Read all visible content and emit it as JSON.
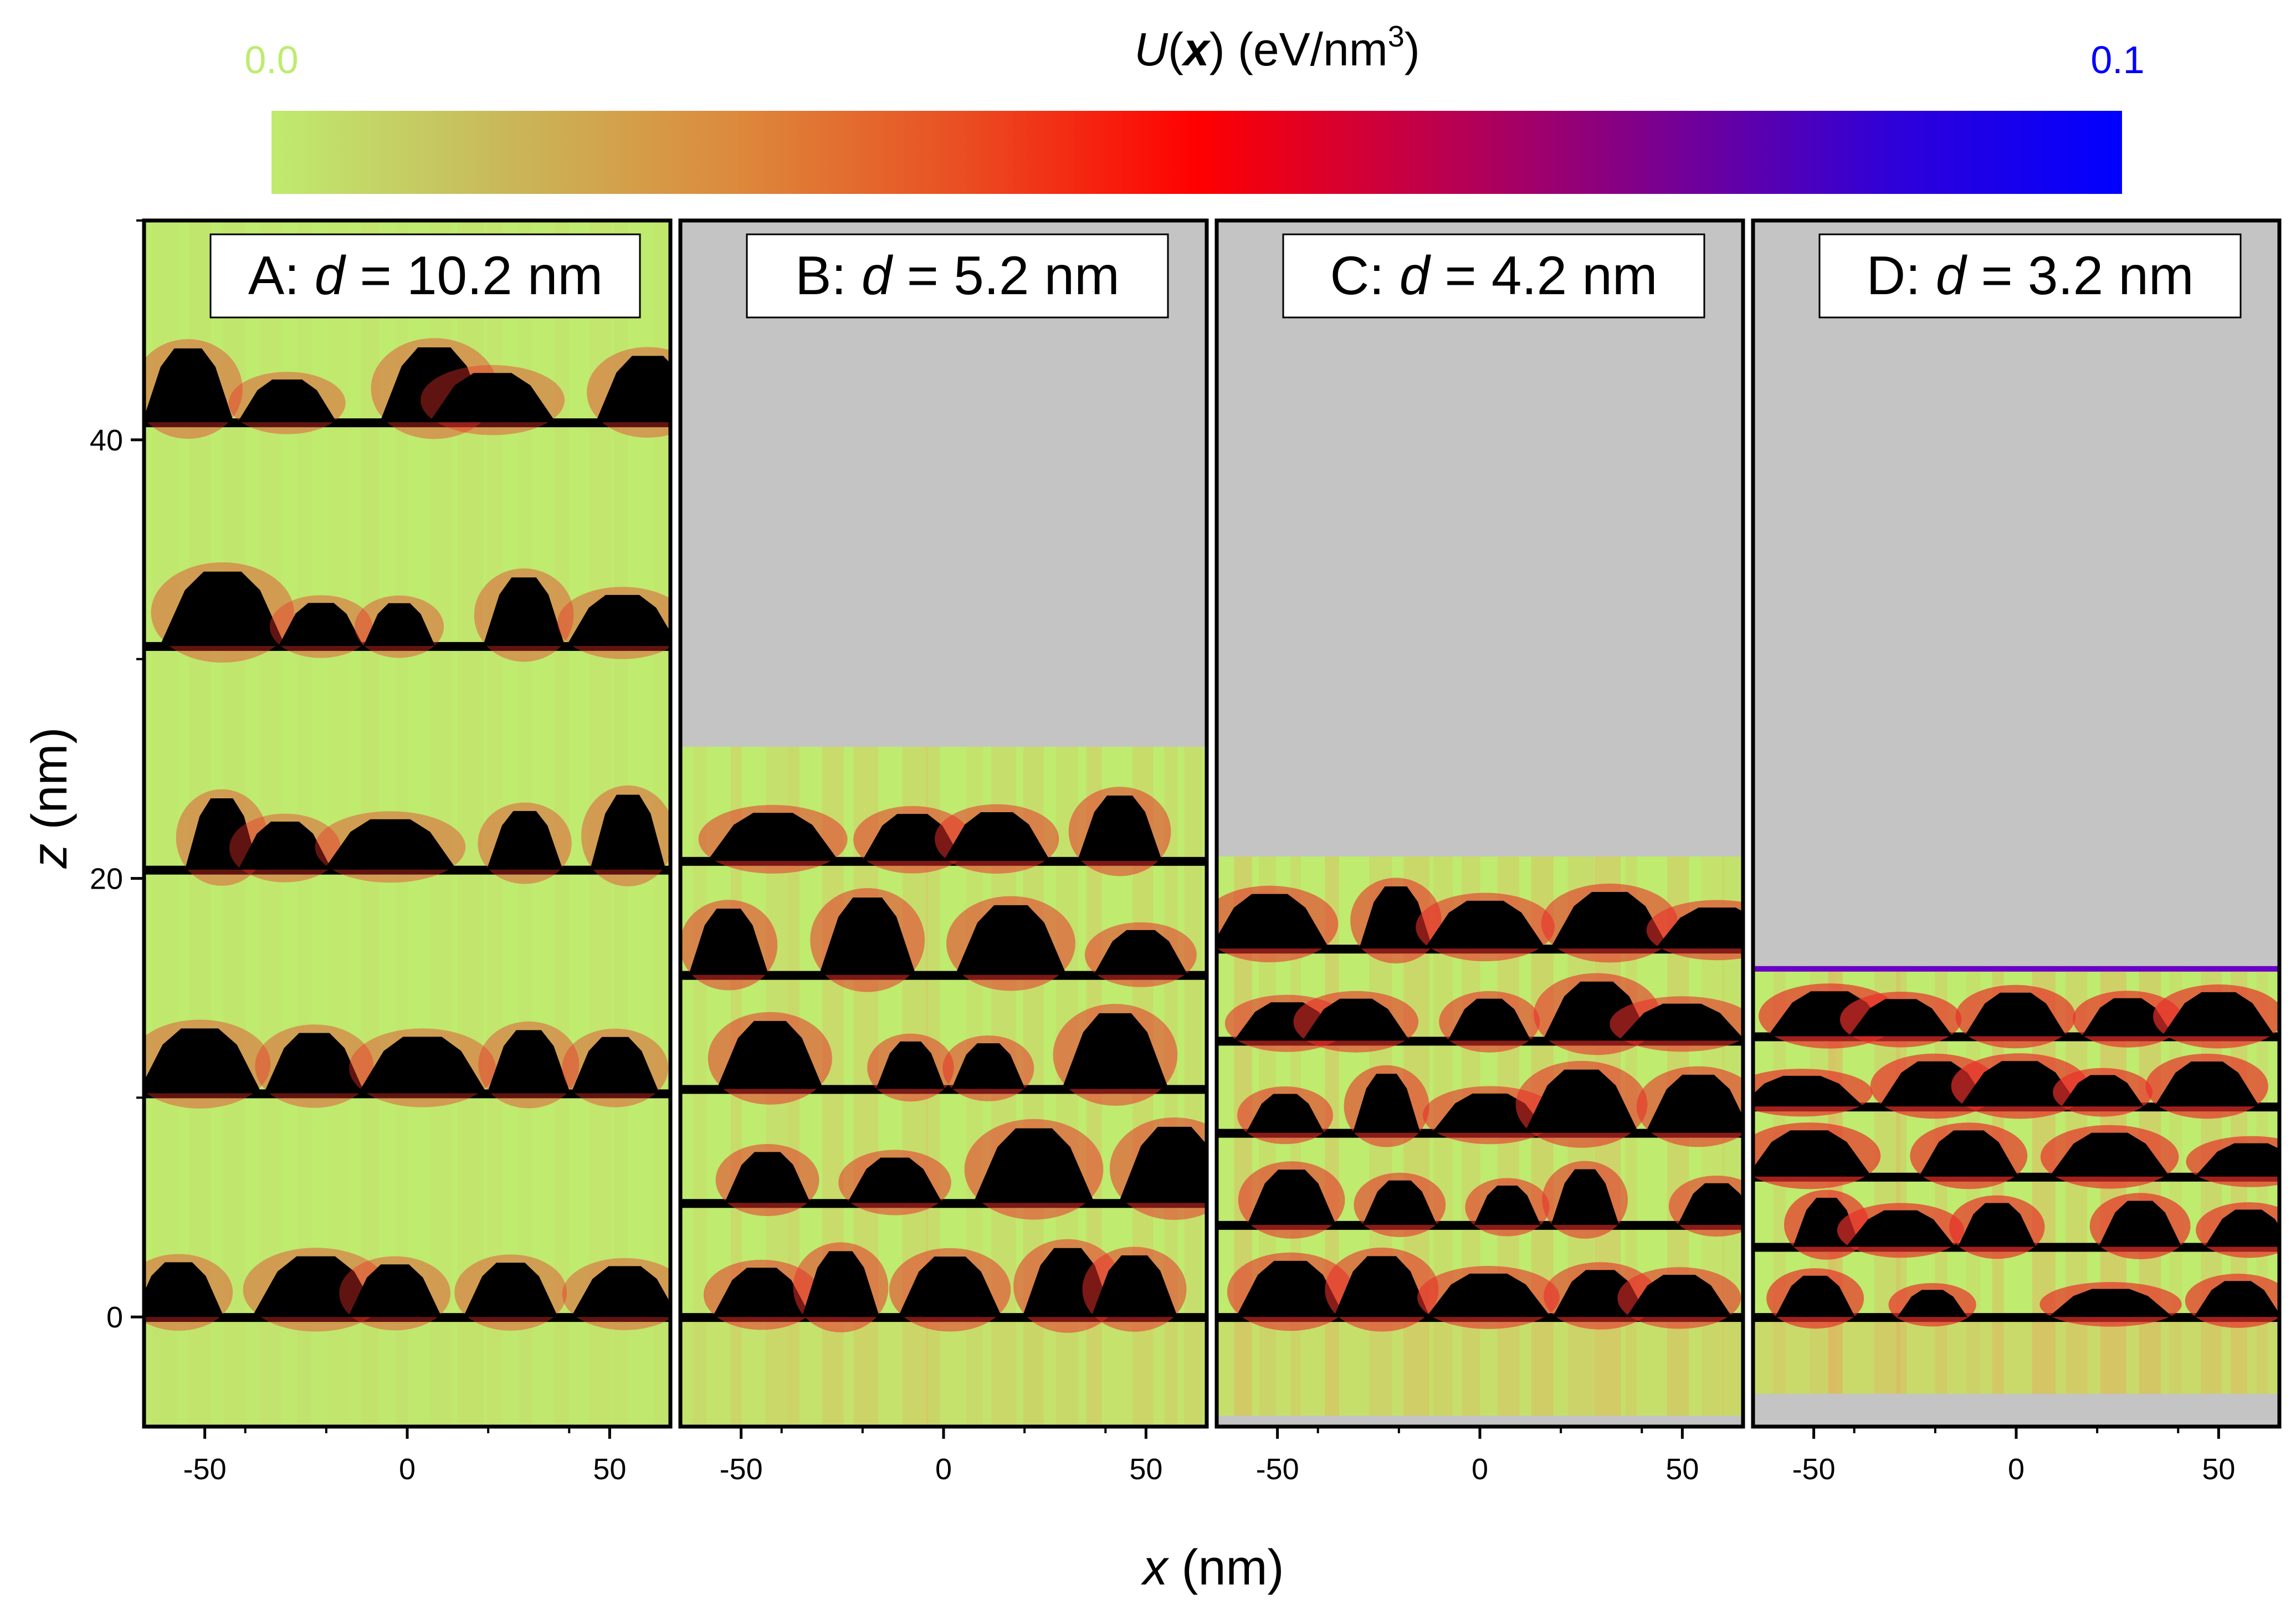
{
  "colorbar": {
    "title_main": "U",
    "title_var": "x",
    "title_units": "(eV/nm",
    "title_exp": "3",
    "min_label": "0.0",
    "max_label": "0.1",
    "min_color": "#bfeb6f",
    "max_color": "#0000ff",
    "stops": [
      "#bfeb6f",
      "#c9b85a",
      "#dc8a3c",
      "#ea4d22",
      "#ff0000",
      "#c0004a",
      "#7a0090",
      "#3000d8",
      "#0000ff"
    ]
  },
  "colors": {
    "background": "#bfeb6f",
    "empty": "#c4c4c4",
    "layer": "#000000",
    "hot": "#e8302a",
    "warm": "#ef9a5a"
  },
  "chart_data": {
    "type": "heatmap",
    "ylabel": "z (nm)",
    "xlabel": "x (nm)",
    "x_range": [
      -65,
      65
    ],
    "y_range": [
      -5,
      50
    ],
    "x_ticks": [
      -50,
      0,
      50
    ],
    "x_tick_labels": [
      "-50",
      "0",
      "50"
    ],
    "y_ticks": [
      0,
      20,
      40
    ],
    "y_tick_labels": [
      "0",
      "20",
      "40"
    ],
    "panels": [
      {
        "id": "A",
        "label_prefix": "A: ",
        "label_var": "d",
        "label_suffix": " = 10.2 nm",
        "d_nm": 10.2,
        "data_top_nm": 50,
        "data_bottom_nm": -5,
        "layers_nm": [
          0,
          10.2,
          20.4,
          30.6,
          40.8
        ],
        "intensity": 0.15
      },
      {
        "id": "B",
        "label_prefix": "B: ",
        "label_var": "d",
        "label_suffix": " = 5.2 nm",
        "d_nm": 5.2,
        "data_top_nm": 26,
        "data_bottom_nm": -5,
        "layers_nm": [
          0,
          5.2,
          10.4,
          15.6,
          20.8
        ],
        "intensity": 0.45
      },
      {
        "id": "C",
        "label_prefix": "C: ",
        "label_var": "d",
        "label_suffix": " = 4.2 nm",
        "d_nm": 4.2,
        "data_top_nm": 21,
        "data_bottom_nm": -4.5,
        "layers_nm": [
          0,
          4.2,
          8.4,
          12.6,
          16.8
        ],
        "intensity": 0.6
      },
      {
        "id": "D",
        "label_prefix": "D: ",
        "label_var": "d",
        "label_suffix": " = 3.2 nm",
        "d_nm": 3.2,
        "data_top_nm": 16,
        "data_bottom_nm": -3.5,
        "layers_nm": [
          0,
          3.2,
          6.4,
          9.6,
          12.8
        ],
        "intensity": 0.85
      }
    ]
  }
}
